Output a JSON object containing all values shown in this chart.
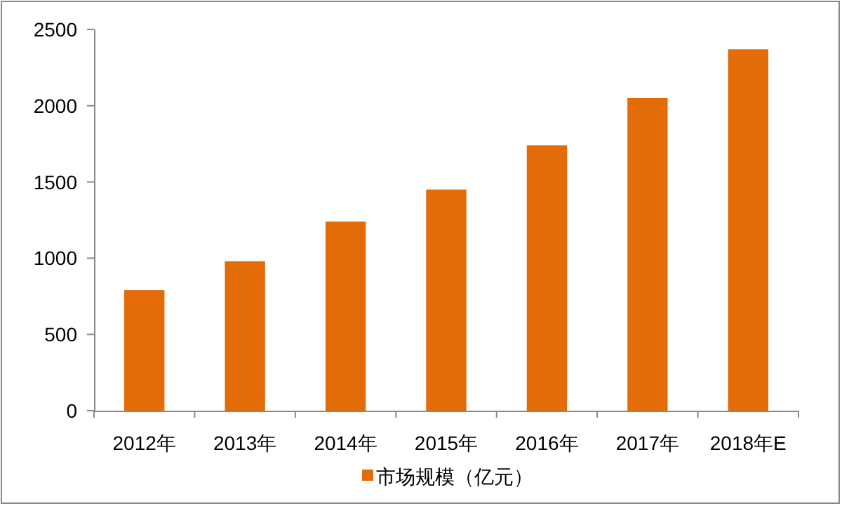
{
  "chart_data": {
    "type": "bar",
    "categories": [
      "2012年",
      "2013年",
      "2014年",
      "2015年",
      "2016年",
      "2017年",
      "2018年E"
    ],
    "series": [
      {
        "name": "市场规模（亿元）",
        "color": "#e36c09",
        "values": [
          790,
          980,
          1240,
          1450,
          1740,
          2050,
          2370
        ]
      }
    ],
    "ylim": [
      0,
      2500
    ],
    "yticks": [
      0,
      500,
      1000,
      1500,
      2000,
      2500
    ],
    "grid": false,
    "legend": "bottom"
  }
}
